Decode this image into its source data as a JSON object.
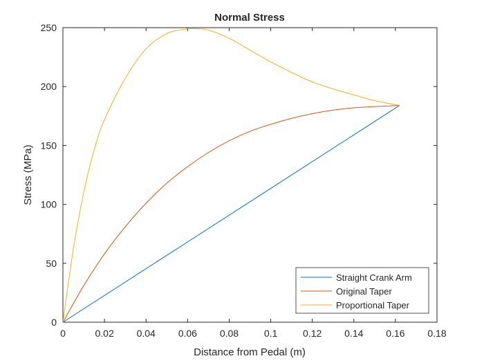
{
  "chart_data": {
    "type": "line",
    "title": "Normal Stress",
    "xlabel": "Distance from Pedal (m)",
    "ylabel": "Stress (MPa)",
    "xlim": [
      0,
      0.18
    ],
    "ylim": [
      0,
      250
    ],
    "xticks": [
      0,
      0.02,
      0.04,
      0.06,
      0.08,
      0.1,
      0.12,
      0.14,
      0.16,
      0.18
    ],
    "xtick_labels": [
      "0",
      "0.02",
      "0.04",
      "0.06",
      "0.08",
      "0.1",
      "0.12",
      "0.14",
      "0.16",
      "0.18"
    ],
    "yticks": [
      0,
      50,
      100,
      150,
      200,
      250
    ],
    "ytick_labels": [
      "0",
      "50",
      "100",
      "150",
      "200",
      "250"
    ],
    "grid": false,
    "legend_position": "bottom-right",
    "series": [
      {
        "name": "Straight Crank Arm",
        "color": "#0072BD",
        "x": [
          0,
          0.162
        ],
        "y": [
          0,
          184
        ]
      },
      {
        "name": "Original Taper",
        "color": "#D95319",
        "x": [
          0,
          0.01,
          0.02,
          0.03,
          0.04,
          0.05,
          0.06,
          0.07,
          0.08,
          0.09,
          0.1,
          0.11,
          0.12,
          0.13,
          0.14,
          0.15,
          0.162
        ],
        "y": [
          0,
          31,
          58,
          81,
          101,
          118,
          132,
          144,
          154,
          162,
          168,
          173,
          177,
          180,
          182,
          183,
          184
        ]
      },
      {
        "name": "Proportional Taper",
        "color": "#EDB120",
        "x": [
          0,
          0.005,
          0.01,
          0.015,
          0.02,
          0.03,
          0.04,
          0.05,
          0.06,
          0.065,
          0.07,
          0.08,
          0.09,
          0.1,
          0.11,
          0.12,
          0.13,
          0.14,
          0.15,
          0.162
        ],
        "y": [
          0,
          62,
          110,
          146,
          172,
          207,
          232,
          245,
          249,
          249,
          248,
          241,
          231,
          221,
          212,
          204,
          198,
          193,
          188,
          184
        ]
      }
    ]
  }
}
